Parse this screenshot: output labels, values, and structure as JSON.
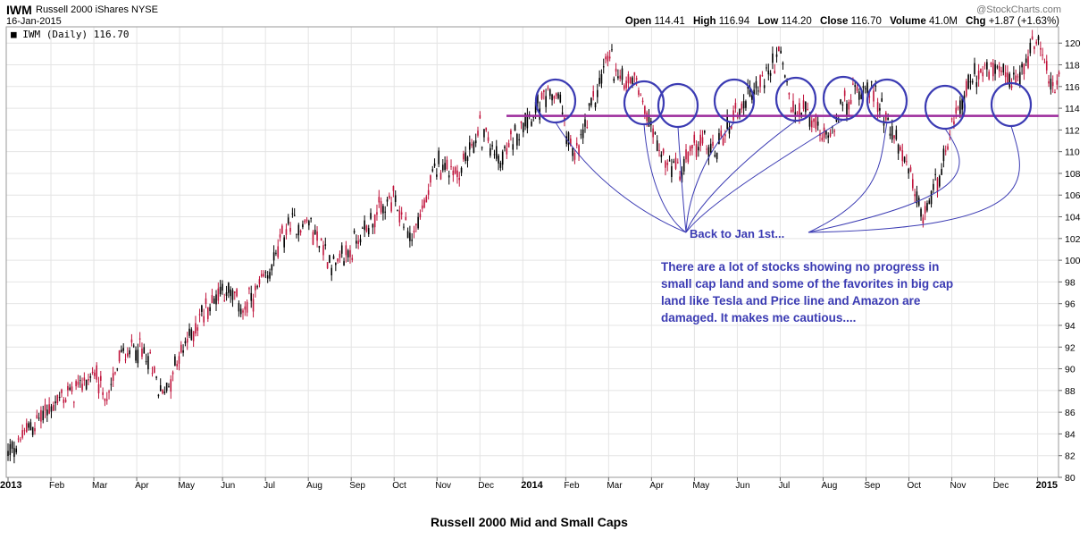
{
  "header": {
    "symbol": "IWM",
    "name": "Russell 2000 iShares",
    "exchange": "NYSE",
    "date": "16-Jan-2015",
    "watermark": "@StockCharts.com",
    "open_label": "Open",
    "open": "114.41",
    "high_label": "High",
    "high": "116.94",
    "low_label": "Low",
    "low": "114.20",
    "close_label": "Close",
    "close": "116.70",
    "volume_label": "Volume",
    "volume": "41.0M",
    "chg_label": "Chg",
    "chg": "+1.87 (+1.63%)"
  },
  "legend": {
    "text": "IWM (Daily) 116.70"
  },
  "annotations": {
    "pointer_text": "Back to Jan 1st...",
    "note": "There are a lot of stocks showing no progress in small cap land and some of the favorites in big cap land like Tesla and Price line and Amazon are damaged. It makes me cautious....",
    "support_line_value": 113.3,
    "support_line_color": "#9b2a9b",
    "circle_color": "#3b3bb3"
  },
  "caption": "Russell 2000 Mid and Small Caps",
  "chart_data": {
    "type": "line",
    "style": "candlestick",
    "up_color": "#000000",
    "down_color": "#c0143c",
    "ylim": [
      80,
      121.5
    ],
    "y_ticks": [
      80,
      82,
      84,
      86,
      88,
      90,
      92,
      94,
      96,
      98,
      100,
      102,
      104,
      106,
      108,
      110,
      112,
      114,
      116,
      118,
      120
    ],
    "x_labels": [
      "2013",
      "Feb",
      "Mar",
      "Apr",
      "May",
      "Jun",
      "Jul",
      "Aug",
      "Sep",
      "Oct",
      "Nov",
      "Dec",
      "2014",
      "Feb",
      "Mar",
      "Apr",
      "May",
      "Jun",
      "Jul",
      "Aug",
      "Sep",
      "Oct",
      "Nov",
      "Dec",
      "2015"
    ],
    "x_label_bold": [
      true,
      false,
      false,
      false,
      false,
      false,
      false,
      false,
      false,
      false,
      false,
      false,
      true,
      false,
      false,
      false,
      false,
      false,
      false,
      false,
      false,
      false,
      false,
      false,
      true
    ],
    "grid": true,
    "axis_side": "right",
    "series": [
      {
        "values": [
          [
            0,
            82.0
          ],
          [
            0.5,
            84.5
          ],
          [
            1,
            86.5
          ],
          [
            1.5,
            88.0
          ],
          [
            2,
            89.5
          ],
          [
            2.3,
            87.0
          ],
          [
            2.6,
            91.0
          ],
          [
            3,
            92.0
          ],
          [
            3.3,
            90.5
          ],
          [
            3.6,
            87.5
          ],
          [
            4,
            91.0
          ],
          [
            4.5,
            95.0
          ],
          [
            5,
            97.5
          ],
          [
            5.5,
            95.5
          ],
          [
            6,
            98.0
          ],
          [
            6.5,
            103.0
          ],
          [
            7,
            103.5
          ],
          [
            7.6,
            99.5
          ],
          [
            8,
            101.0
          ],
          [
            8.5,
            104.0
          ],
          [
            9,
            105.5
          ],
          [
            9.4,
            102.0
          ],
          [
            9.8,
            106.0
          ],
          [
            10,
            109.0
          ],
          [
            10.5,
            108.0
          ],
          [
            11,
            112.0
          ],
          [
            11.5,
            109.0
          ],
          [
            12,
            113.0
          ],
          [
            12.5,
            114.5
          ],
          [
            12.8,
            115.5
          ],
          [
            13.2,
            109.0
          ],
          [
            13.6,
            114.0
          ],
          [
            14,
            119.0
          ],
          [
            14.3,
            116.5
          ],
          [
            14.6,
            117.0
          ],
          [
            15,
            112.5
          ],
          [
            15.3,
            109.0
          ],
          [
            15.7,
            108.0
          ],
          [
            16,
            111.0
          ],
          [
            16.5,
            110.0
          ],
          [
            17,
            114.0
          ],
          [
            17.5,
            116.0
          ],
          [
            18,
            119.0
          ],
          [
            18.3,
            113.5
          ],
          [
            18.6,
            114.0
          ],
          [
            19,
            111.0
          ],
          [
            19.4,
            114.0
          ],
          [
            19.8,
            115.5
          ],
          [
            20,
            116.5
          ],
          [
            20.5,
            113.0
          ],
          [
            21,
            108.0
          ],
          [
            21.3,
            103.5
          ],
          [
            21.7,
            108.0
          ],
          [
            22,
            112.0
          ],
          [
            22.5,
            117.0
          ],
          [
            23,
            117.5
          ],
          [
            23.5,
            116.0
          ],
          [
            24,
            121.0
          ],
          [
            24.3,
            116.0
          ],
          [
            24.5,
            116.7
          ]
        ]
      }
    ]
  }
}
